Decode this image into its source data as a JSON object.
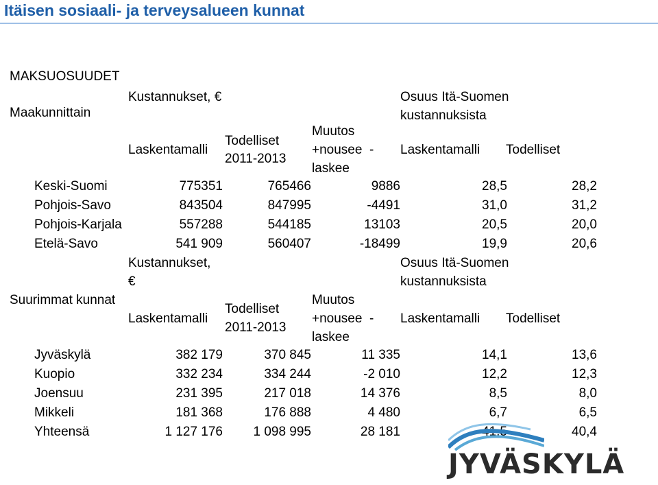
{
  "title": "Itäisen sosiaali- ja terveysalueen kunnat",
  "section_label": "MAKSUOSUUDET",
  "brand": {
    "name": "JYVÄSKYLÄ",
    "colors": [
      "#2e7fbe",
      "#5aa9d6",
      "#8fc5e8",
      "#0f4f8a"
    ]
  },
  "table1": {
    "group_label": "Maakunnittain",
    "hdr_cost_group": "Kustannukset, €",
    "hdr_share_group": "Osuus Itä-Suomen kustannuksista",
    "hdr_model": "Laskentamalli",
    "hdr_actual_line1": "Todelliset",
    "hdr_actual_line2": "2011-2013",
    "hdr_change_line1": "Muutos",
    "hdr_change_line2": "+nousee  -",
    "hdr_change_line3": "laskee",
    "hdr_share_model": "Laskentamalli",
    "hdr_share_actual": "Todelliset",
    "rows": [
      {
        "name": "Keski-Suomi",
        "model": "775351",
        "actual": "765466",
        "change": "9886",
        "share_model": "28,5",
        "share_actual": "28,2"
      },
      {
        "name": "Pohjois-Savo",
        "model": "843504",
        "actual": "847995",
        "change": "-4491",
        "share_model": "31,0",
        "share_actual": "31,2"
      },
      {
        "name": "Pohjois-Karjala",
        "model": "557288",
        "actual": "544185",
        "change": "13103",
        "share_model": "20,5",
        "share_actual": "20,0"
      },
      {
        "name": "Etelä-Savo",
        "model": "541 909",
        "actual": "560407",
        "change": "-18499",
        "share_model": "19,9",
        "share_actual": "20,6"
      }
    ]
  },
  "table2": {
    "group_label": "Suurimmat kunnat",
    "hdr_cost_line1": "Kustannukset,",
    "hdr_cost_line2": "€",
    "hdr_share_line1": "Osuus Itä-Suomen",
    "hdr_share_line2": "kustannuksista",
    "hdr_model": "Laskentamalli",
    "hdr_actual_line1": "Todelliset",
    "hdr_actual_line2": "2011-2013",
    "hdr_change_line1": "Muutos",
    "hdr_change_line2": "+nousee  -",
    "hdr_change_line3": "laskee",
    "hdr_share_model": "Laskentamalli",
    "hdr_share_actual": "Todelliset",
    "rows": [
      {
        "name": "Jyväskylä",
        "model": "382 179",
        "actual": "370 845",
        "change": "11 335",
        "share_model": "14,1",
        "share_actual": "13,6"
      },
      {
        "name": "Kuopio",
        "model": "332 234",
        "actual": "334 244",
        "change": "-2 010",
        "share_model": "12,2",
        "share_actual": "12,3"
      },
      {
        "name": "Joensuu",
        "model": "231 395",
        "actual": "217 018",
        "change": "14 376",
        "share_model": "8,5",
        "share_actual": "8,0"
      },
      {
        "name": "Mikkeli",
        "model": "181 368",
        "actual": "176 888",
        "change": "4 480",
        "share_model": "6,7",
        "share_actual": "6,5"
      },
      {
        "name": "Yhteensä",
        "model": "1 127 176",
        "actual": "1 098 995",
        "change": "28 181",
        "share_model": "41,5",
        "share_actual": "40,4"
      }
    ]
  }
}
